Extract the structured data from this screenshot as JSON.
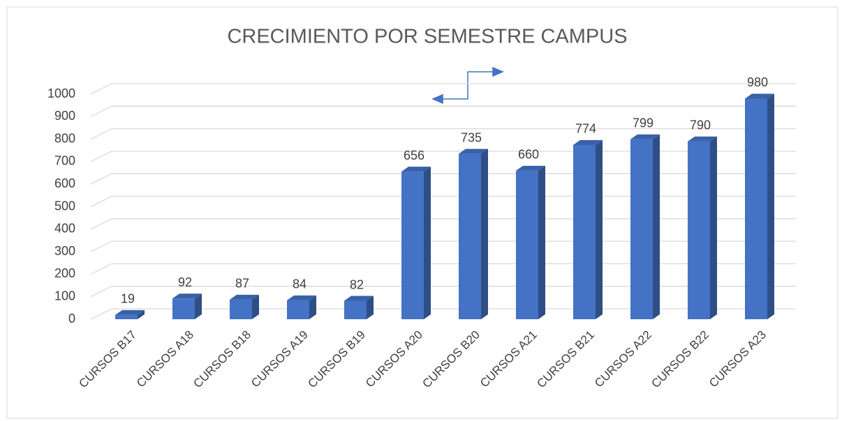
{
  "chart_data": {
    "type": "bar",
    "title": "CRECIMIENTO POR SEMESTRE CAMPUS",
    "categories": [
      "CURSOS B17",
      "CURSOS A18",
      "CURSOS B18",
      "CURSOS A19",
      "CURSOS B19",
      "CURSOS A20",
      "CURSOS B20",
      "CURSOS A21",
      "CURSOS B21",
      "CURSOS A22",
      "CURSOS B22",
      "CURSOS A23"
    ],
    "values": [
      19,
      92,
      87,
      84,
      82,
      656,
      735,
      660,
      774,
      799,
      790,
      980
    ],
    "color": "#4472c4",
    "ylim": [
      0,
      1000
    ],
    "yticks": [
      0,
      100,
      200,
      300,
      400,
      500,
      600,
      700,
      800,
      900,
      1000
    ],
    "grid": true
  }
}
